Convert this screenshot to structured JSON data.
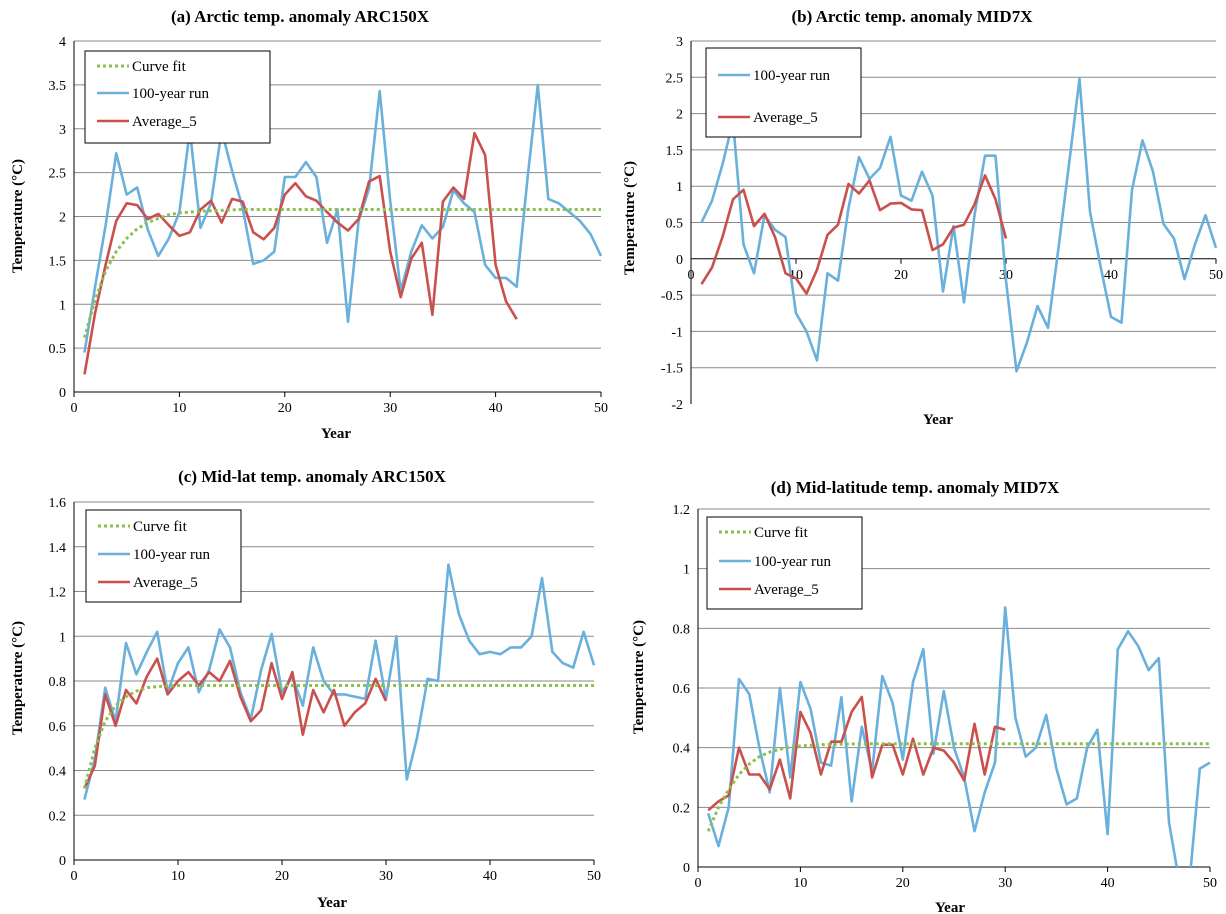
{
  "colors": {
    "curve_fit": "#8bbf4e",
    "run_100": "#6ab0dc",
    "average_5": "#c9504c"
  },
  "chart_data": [
    {
      "id": "a",
      "type": "line",
      "title": "(a) Arctic temp. anomaly ARC150X",
      "xlabel": "Year",
      "ylabel": "Temperature (°C)",
      "xlim": [
        0,
        50
      ],
      "ylim": [
        0,
        4
      ],
      "xticks": [
        "0",
        "10",
        "20",
        "30",
        "40",
        "50"
      ],
      "yticks": [
        "0",
        "0.5",
        "1",
        "1.5",
        "2",
        "2.5",
        "3",
        "3.5",
        "4"
      ],
      "legend": [
        "Curve fit",
        "100-year run",
        "Average_5"
      ],
      "series": [
        {
          "name": "100-year run",
          "x": [
            1,
            2,
            3,
            4,
            5,
            6,
            7,
            8,
            9,
            10,
            11,
            12,
            13,
            14,
            15,
            16,
            17,
            18,
            19,
            20,
            21,
            22,
            23,
            24,
            25,
            26,
            27,
            28,
            29,
            30,
            31,
            32,
            33,
            34,
            35,
            36,
            37,
            38,
            39,
            40,
            41,
            42,
            43,
            44,
            45,
            46,
            47,
            48,
            49,
            50
          ],
          "y": [
            0.45,
            1.2,
            1.9,
            2.72,
            2.25,
            2.33,
            1.85,
            1.55,
            1.75,
            2.05,
            2.98,
            1.87,
            2.15,
            2.98,
            2.52,
            2.1,
            1.46,
            1.5,
            1.6,
            2.45,
            2.45,
            2.62,
            2.45,
            1.7,
            2.08,
            0.8,
            1.95,
            2.32,
            3.43,
            2.18,
            1.15,
            1.6,
            1.9,
            1.75,
            1.88,
            2.3,
            2.15,
            2.05,
            1.45,
            1.3,
            1.3,
            1.2,
            2.4,
            3.5,
            2.2,
            2.15,
            2.05,
            1.95,
            1.8,
            1.55
          ]
        },
        {
          "name": "Average_5",
          "x": [
            1,
            2,
            3,
            4,
            5,
            6,
            7,
            8,
            9,
            10,
            11,
            12,
            13,
            14,
            15,
            16,
            17,
            18,
            19,
            20,
            21,
            22,
            23,
            24,
            25,
            26,
            27,
            28,
            29,
            30,
            31,
            32,
            33,
            34,
            35,
            36,
            37,
            38,
            39,
            40,
            41,
            42
          ],
          "y": [
            0.2,
            0.9,
            1.45,
            1.95,
            2.15,
            2.13,
            1.97,
            2.03,
            1.9,
            1.78,
            1.82,
            2.08,
            2.18,
            1.93,
            2.2,
            2.17,
            1.82,
            1.74,
            1.87,
            2.25,
            2.38,
            2.23,
            2.18,
            2.05,
            1.93,
            1.84,
            1.97,
            2.4,
            2.46,
            1.6,
            1.08,
            1.52,
            1.7,
            0.88,
            2.17,
            2.33,
            2.2,
            2.95,
            2.7,
            1.45,
            1.03,
            0.83
          ]
        },
        {
          "name": "Curve fit",
          "x": [
            1,
            2,
            3,
            4,
            5,
            6,
            7,
            8,
            9,
            10,
            12,
            14,
            16,
            18,
            20,
            25,
            30,
            35,
            40,
            45,
            50
          ],
          "y": [
            0.62,
            1.05,
            1.38,
            1.6,
            1.75,
            1.86,
            1.93,
            1.98,
            2.02,
            2.04,
            2.06,
            2.07,
            2.08,
            2.08,
            2.08,
            2.08,
            2.08,
            2.08,
            2.08,
            2.08,
            2.08
          ]
        }
      ]
    },
    {
      "id": "b",
      "type": "line",
      "title": "(b) Arctic temp. anomaly MID7X",
      "xlabel": "Year",
      "ylabel": "Temperature (°C)",
      "xlim": [
        0,
        50
      ],
      "ylim": [
        -2,
        3
      ],
      "xticks": [
        "0",
        "10",
        "20",
        "30",
        "40",
        "50"
      ],
      "yticks": [
        "-2",
        "-1.5",
        "-1",
        "-0.5",
        "0",
        "0.5",
        "1",
        "1.5",
        "2",
        "2.5",
        "3"
      ],
      "legend": [
        "100-year run",
        "Average_5"
      ],
      "series": [
        {
          "name": "100-year run",
          "x": [
            1,
            2,
            3,
            4,
            5,
            6,
            7,
            8,
            9,
            10,
            11,
            12,
            13,
            14,
            15,
            16,
            17,
            18,
            19,
            20,
            21,
            22,
            23,
            24,
            25,
            26,
            27,
            28,
            29,
            30,
            31,
            32,
            33,
            34,
            35,
            36,
            37,
            38,
            39,
            40,
            41,
            42,
            43,
            44,
            45,
            46,
            47,
            48,
            49,
            50
          ],
          "y": [
            0.5,
            0.8,
            1.3,
            1.9,
            0.2,
            -0.2,
            0.6,
            0.4,
            0.3,
            -0.75,
            -1.0,
            -1.4,
            -0.2,
            -0.3,
            0.7,
            1.4,
            1.1,
            1.25,
            1.68,
            0.87,
            0.8,
            1.2,
            0.87,
            -0.45,
            0.45,
            -0.6,
            0.6,
            1.42,
            1.42,
            -0.3,
            -1.55,
            -1.15,
            -0.65,
            -0.95,
            0.15,
            1.3,
            2.48,
            0.65,
            -0.1,
            -0.8,
            -0.88,
            0.95,
            1.63,
            1.2,
            0.48,
            0.28,
            -0.28,
            0.2,
            0.6,
            0.15
          ]
        },
        {
          "name": "Average_5",
          "x": [
            1,
            2,
            3,
            4,
            5,
            6,
            7,
            8,
            9,
            10,
            11,
            12,
            13,
            14,
            15,
            16,
            17,
            18,
            19,
            20,
            21,
            22,
            23,
            24,
            25,
            26,
            27,
            28,
            29,
            30
          ],
          "y": [
            -0.35,
            -0.12,
            0.3,
            0.82,
            0.95,
            0.45,
            0.62,
            0.3,
            -0.2,
            -0.27,
            -0.48,
            -0.15,
            0.33,
            0.47,
            1.03,
            0.9,
            1.08,
            0.67,
            0.76,
            0.77,
            0.68,
            0.67,
            0.12,
            0.2,
            0.43,
            0.47,
            0.75,
            1.15,
            0.82,
            0.28
          ]
        }
      ]
    },
    {
      "id": "c",
      "type": "line",
      "title": "(c) Mid-lat temp. anomaly ARC150X",
      "xlabel": "Year",
      "ylabel": "Temperature (°C)",
      "xlim": [
        0,
        50
      ],
      "ylim": [
        0,
        1.6
      ],
      "xticks": [
        "0",
        "10",
        "20",
        "30",
        "40",
        "50"
      ],
      "yticks": [
        "0",
        "0.2",
        "0.4",
        "0.6",
        "0.8",
        "1",
        "1.2",
        "1.4",
        "1.6"
      ],
      "legend": [
        "Curve fit",
        "100-year run",
        "Average_5"
      ],
      "series": [
        {
          "name": "100-year run",
          "x": [
            1,
            2,
            3,
            4,
            5,
            6,
            7,
            8,
            9,
            10,
            11,
            12,
            13,
            14,
            15,
            16,
            17,
            18,
            19,
            20,
            21,
            22,
            23,
            24,
            25,
            26,
            27,
            28,
            29,
            30,
            31,
            32,
            33,
            34,
            35,
            36,
            37,
            38,
            39,
            40,
            41,
            42,
            43,
            44,
            45,
            46,
            47,
            48,
            49,
            50
          ],
          "y": [
            0.27,
            0.45,
            0.77,
            0.62,
            0.97,
            0.83,
            0.93,
            1.02,
            0.75,
            0.88,
            0.95,
            0.75,
            0.85,
            1.03,
            0.95,
            0.75,
            0.63,
            0.85,
            1.01,
            0.75,
            0.82,
            0.69,
            0.95,
            0.8,
            0.74,
            0.74,
            0.73,
            0.72,
            0.98,
            0.72,
            1.0,
            0.36,
            0.55,
            0.81,
            0.8,
            1.32,
            1.1,
            0.98,
            0.92,
            0.93,
            0.92,
            0.95,
            0.95,
            1.0,
            1.26,
            0.93,
            0.88,
            0.86,
            1.02,
            0.87
          ]
        },
        {
          "name": "Average_5",
          "x": [
            1,
            2,
            3,
            4,
            5,
            6,
            7,
            8,
            9,
            10,
            11,
            12,
            13,
            14,
            15,
            16,
            17,
            18,
            19,
            20,
            21,
            22,
            23,
            24,
            25,
            26,
            27,
            28,
            29,
            30
          ],
          "y": [
            0.32,
            0.42,
            0.74,
            0.6,
            0.76,
            0.7,
            0.82,
            0.9,
            0.74,
            0.8,
            0.84,
            0.78,
            0.84,
            0.8,
            0.89,
            0.73,
            0.62,
            0.67,
            0.88,
            0.72,
            0.84,
            0.56,
            0.76,
            0.66,
            0.76,
            0.6,
            0.66,
            0.7,
            0.81,
            0.71
          ]
        },
        {
          "name": "Curve fit",
          "x": [
            1,
            2,
            3,
            4,
            5,
            6,
            7,
            8,
            9,
            10,
            12,
            14,
            16,
            18,
            20,
            25,
            30,
            35,
            40,
            45,
            50
          ],
          "y": [
            0.32,
            0.5,
            0.62,
            0.69,
            0.73,
            0.755,
            0.77,
            0.775,
            0.778,
            0.78,
            0.78,
            0.78,
            0.78,
            0.78,
            0.78,
            0.78,
            0.78,
            0.78,
            0.78,
            0.78,
            0.78
          ]
        }
      ]
    },
    {
      "id": "d",
      "type": "line",
      "title": "(d) Mid-latitude temp. anomaly MID7X",
      "xlabel": "Year",
      "ylabel": "Temperature (°C)",
      "xlim": [
        0,
        50
      ],
      "ylim": [
        0,
        1.2
      ],
      "xticks": [
        "0",
        "10",
        "20",
        "30",
        "40",
        "50"
      ],
      "yticks": [
        "0",
        "0.2",
        "0.4",
        "0.6",
        "0.8",
        "1",
        "1.2"
      ],
      "legend": [
        "Curve fit",
        "100-year run",
        "Average_5"
      ],
      "series": [
        {
          "name": "100-year run",
          "x": [
            1,
            2,
            3,
            4,
            5,
            6,
            7,
            8,
            9,
            10,
            11,
            12,
            13,
            14,
            15,
            16,
            17,
            18,
            19,
            20,
            21,
            22,
            23,
            24,
            25,
            26,
            27,
            28,
            29,
            30,
            31,
            32,
            33,
            34,
            35,
            36,
            37,
            38,
            39,
            40,
            41,
            42,
            43,
            44,
            45,
            46,
            47,
            48,
            49,
            50
          ],
          "y": [
            0.18,
            0.07,
            0.2,
            0.63,
            0.58,
            0.4,
            0.25,
            0.6,
            0.3,
            0.62,
            0.53,
            0.35,
            0.34,
            0.57,
            0.22,
            0.47,
            0.32,
            0.64,
            0.55,
            0.36,
            0.62,
            0.73,
            0.38,
            0.59,
            0.4,
            0.3,
            0.12,
            0.25,
            0.35,
            0.87,
            0.5,
            0.37,
            0.4,
            0.51,
            0.33,
            0.21,
            0.23,
            0.4,
            0.46,
            0.11,
            0.73,
            0.79,
            0.74,
            0.66,
            0.7,
            0.15,
            -0.05,
            -0.05,
            0.33,
            0.35
          ]
        },
        {
          "name": "Average_5",
          "x": [
            1,
            2,
            3,
            4,
            5,
            6,
            7,
            8,
            9,
            10,
            11,
            12,
            13,
            14,
            15,
            16,
            17,
            18,
            19,
            20,
            21,
            22,
            23,
            24,
            25,
            26,
            27,
            28,
            29,
            30
          ],
          "y": [
            0.19,
            0.22,
            0.24,
            0.4,
            0.31,
            0.31,
            0.26,
            0.36,
            0.23,
            0.52,
            0.45,
            0.31,
            0.42,
            0.42,
            0.52,
            0.57,
            0.3,
            0.41,
            0.41,
            0.31,
            0.43,
            0.31,
            0.4,
            0.39,
            0.35,
            0.29,
            0.48,
            0.31,
            0.47,
            0.46
          ]
        },
        {
          "name": "Curve fit",
          "x": [
            1,
            2,
            3,
            4,
            5,
            6,
            7,
            8,
            9,
            10,
            12,
            14,
            16,
            18,
            20,
            25,
            30,
            35,
            40,
            45,
            50
          ],
          "y": [
            0.12,
            0.2,
            0.26,
            0.31,
            0.345,
            0.37,
            0.385,
            0.395,
            0.402,
            0.406,
            0.41,
            0.412,
            0.413,
            0.413,
            0.413,
            0.413,
            0.413,
            0.413,
            0.413,
            0.413,
            0.413
          ]
        }
      ]
    }
  ]
}
